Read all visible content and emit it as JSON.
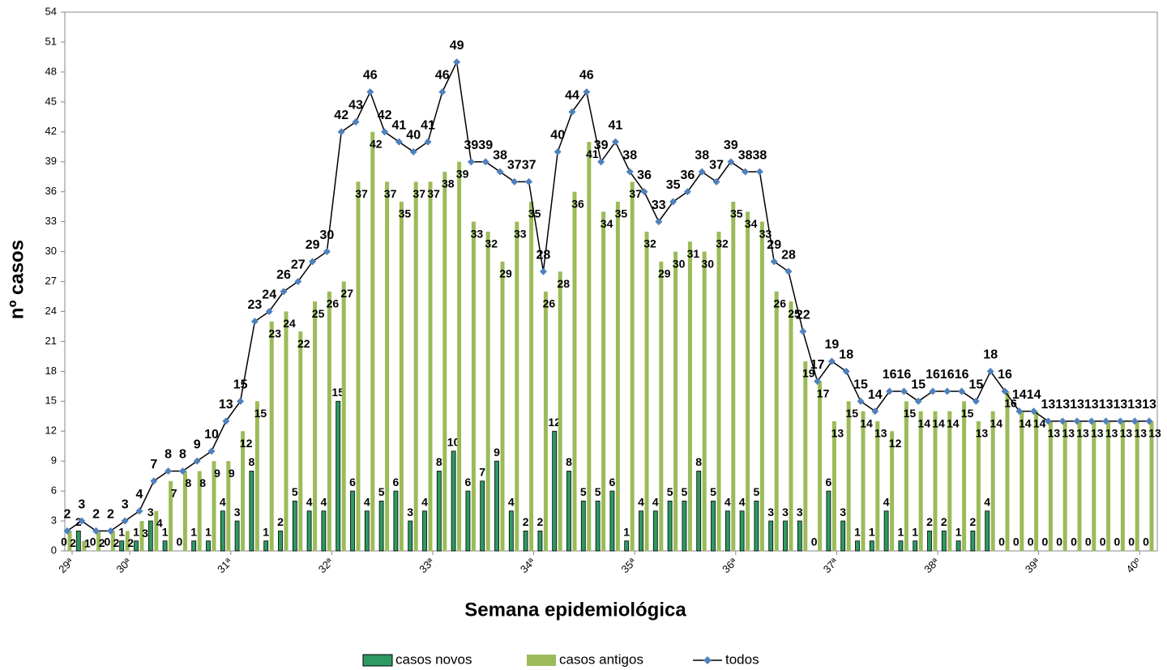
{
  "chart_data": {
    "type": "bar_line",
    "x_label": "Semana epidemiológica",
    "y_label": "nº casos",
    "categories": [
      "29ª",
      null,
      null,
      null,
      "30ª",
      null,
      null,
      null,
      null,
      null,
      null,
      "31ª",
      null,
      null,
      null,
      null,
      null,
      null,
      "32ª",
      null,
      null,
      null,
      null,
      null,
      null,
      "33ª",
      null,
      null,
      null,
      null,
      null,
      null,
      "34ª",
      null,
      null,
      null,
      null,
      null,
      null,
      "35ª",
      null,
      null,
      null,
      null,
      null,
      null,
      "36ª",
      null,
      null,
      null,
      null,
      null,
      null,
      "37ª",
      null,
      null,
      null,
      null,
      null,
      null,
      "38ª",
      null,
      null,
      null,
      null,
      null,
      null,
      "39ª",
      null,
      null,
      null,
      null,
      null,
      null,
      "40º",
      null
    ],
    "series": [
      {
        "name": "casos novos",
        "kind": "bar",
        "color": "#2e9a62",
        "values": [
          0,
          2,
          0,
          0,
          1,
          1,
          3,
          1,
          0,
          1,
          1,
          4,
          3,
          8,
          1,
          2,
          5,
          4,
          4,
          15,
          6,
          4,
          5,
          6,
          3,
          4,
          8,
          10,
          6,
          7,
          9,
          4,
          2,
          2,
          12,
          8,
          5,
          5,
          6,
          1,
          4,
          4,
          5,
          5,
          8,
          5,
          4,
          4,
          5,
          3,
          3,
          3,
          0,
          6,
          3,
          1,
          1,
          4,
          1,
          1,
          2,
          2,
          1,
          2,
          4,
          0,
          0,
          0,
          0,
          0,
          0,
          0,
          0,
          0,
          0,
          0
        ]
      },
      {
        "name": "casos antigos",
        "kind": "bar",
        "color": "#9bbb59",
        "values": [
          2,
          1,
          2,
          2,
          2,
          3,
          4,
          7,
          8,
          8,
          9,
          9,
          12,
          15,
          23,
          24,
          22,
          25,
          26,
          27,
          37,
          42,
          37,
          35,
          37,
          37,
          38,
          39,
          33,
          32,
          29,
          33,
          35,
          26,
          28,
          36,
          41,
          34,
          35,
          37,
          32,
          29,
          30,
          31,
          30,
          32,
          35,
          34,
          33,
          26,
          25,
          19,
          17,
          13,
          15,
          14,
          13,
          12,
          15,
          14,
          14,
          14,
          15,
          13,
          14,
          16,
          14,
          14,
          13,
          13,
          13,
          13,
          13,
          13,
          13,
          13
        ]
      },
      {
        "name": "todos",
        "kind": "line",
        "color": "#4f81bd",
        "values": [
          2,
          3,
          2,
          2,
          3,
          4,
          7,
          8,
          8,
          9,
          10,
          13,
          15,
          23,
          24,
          26,
          27,
          29,
          30,
          42,
          43,
          46,
          42,
          41,
          40,
          41,
          46,
          49,
          39,
          39,
          38,
          37,
          37,
          28,
          40,
          44,
          46,
          39,
          41,
          38,
          36,
          33,
          35,
          36,
          38,
          37,
          39,
          38,
          38,
          29,
          28,
          22,
          17,
          19,
          18,
          15,
          14,
          16,
          16,
          15,
          16,
          16,
          16,
          15,
          18,
          16,
          14,
          14,
          13,
          13,
          13,
          13,
          13,
          13,
          13,
          13
        ]
      }
    ],
    "ylim": [
      0,
      54
    ],
    "yticks": [
      0,
      3,
      6,
      9,
      12,
      15,
      18,
      21,
      24,
      27,
      30,
      33,
      36,
      39,
      42,
      45,
      48,
      51,
      54
    ],
    "legend": "bottom"
  }
}
